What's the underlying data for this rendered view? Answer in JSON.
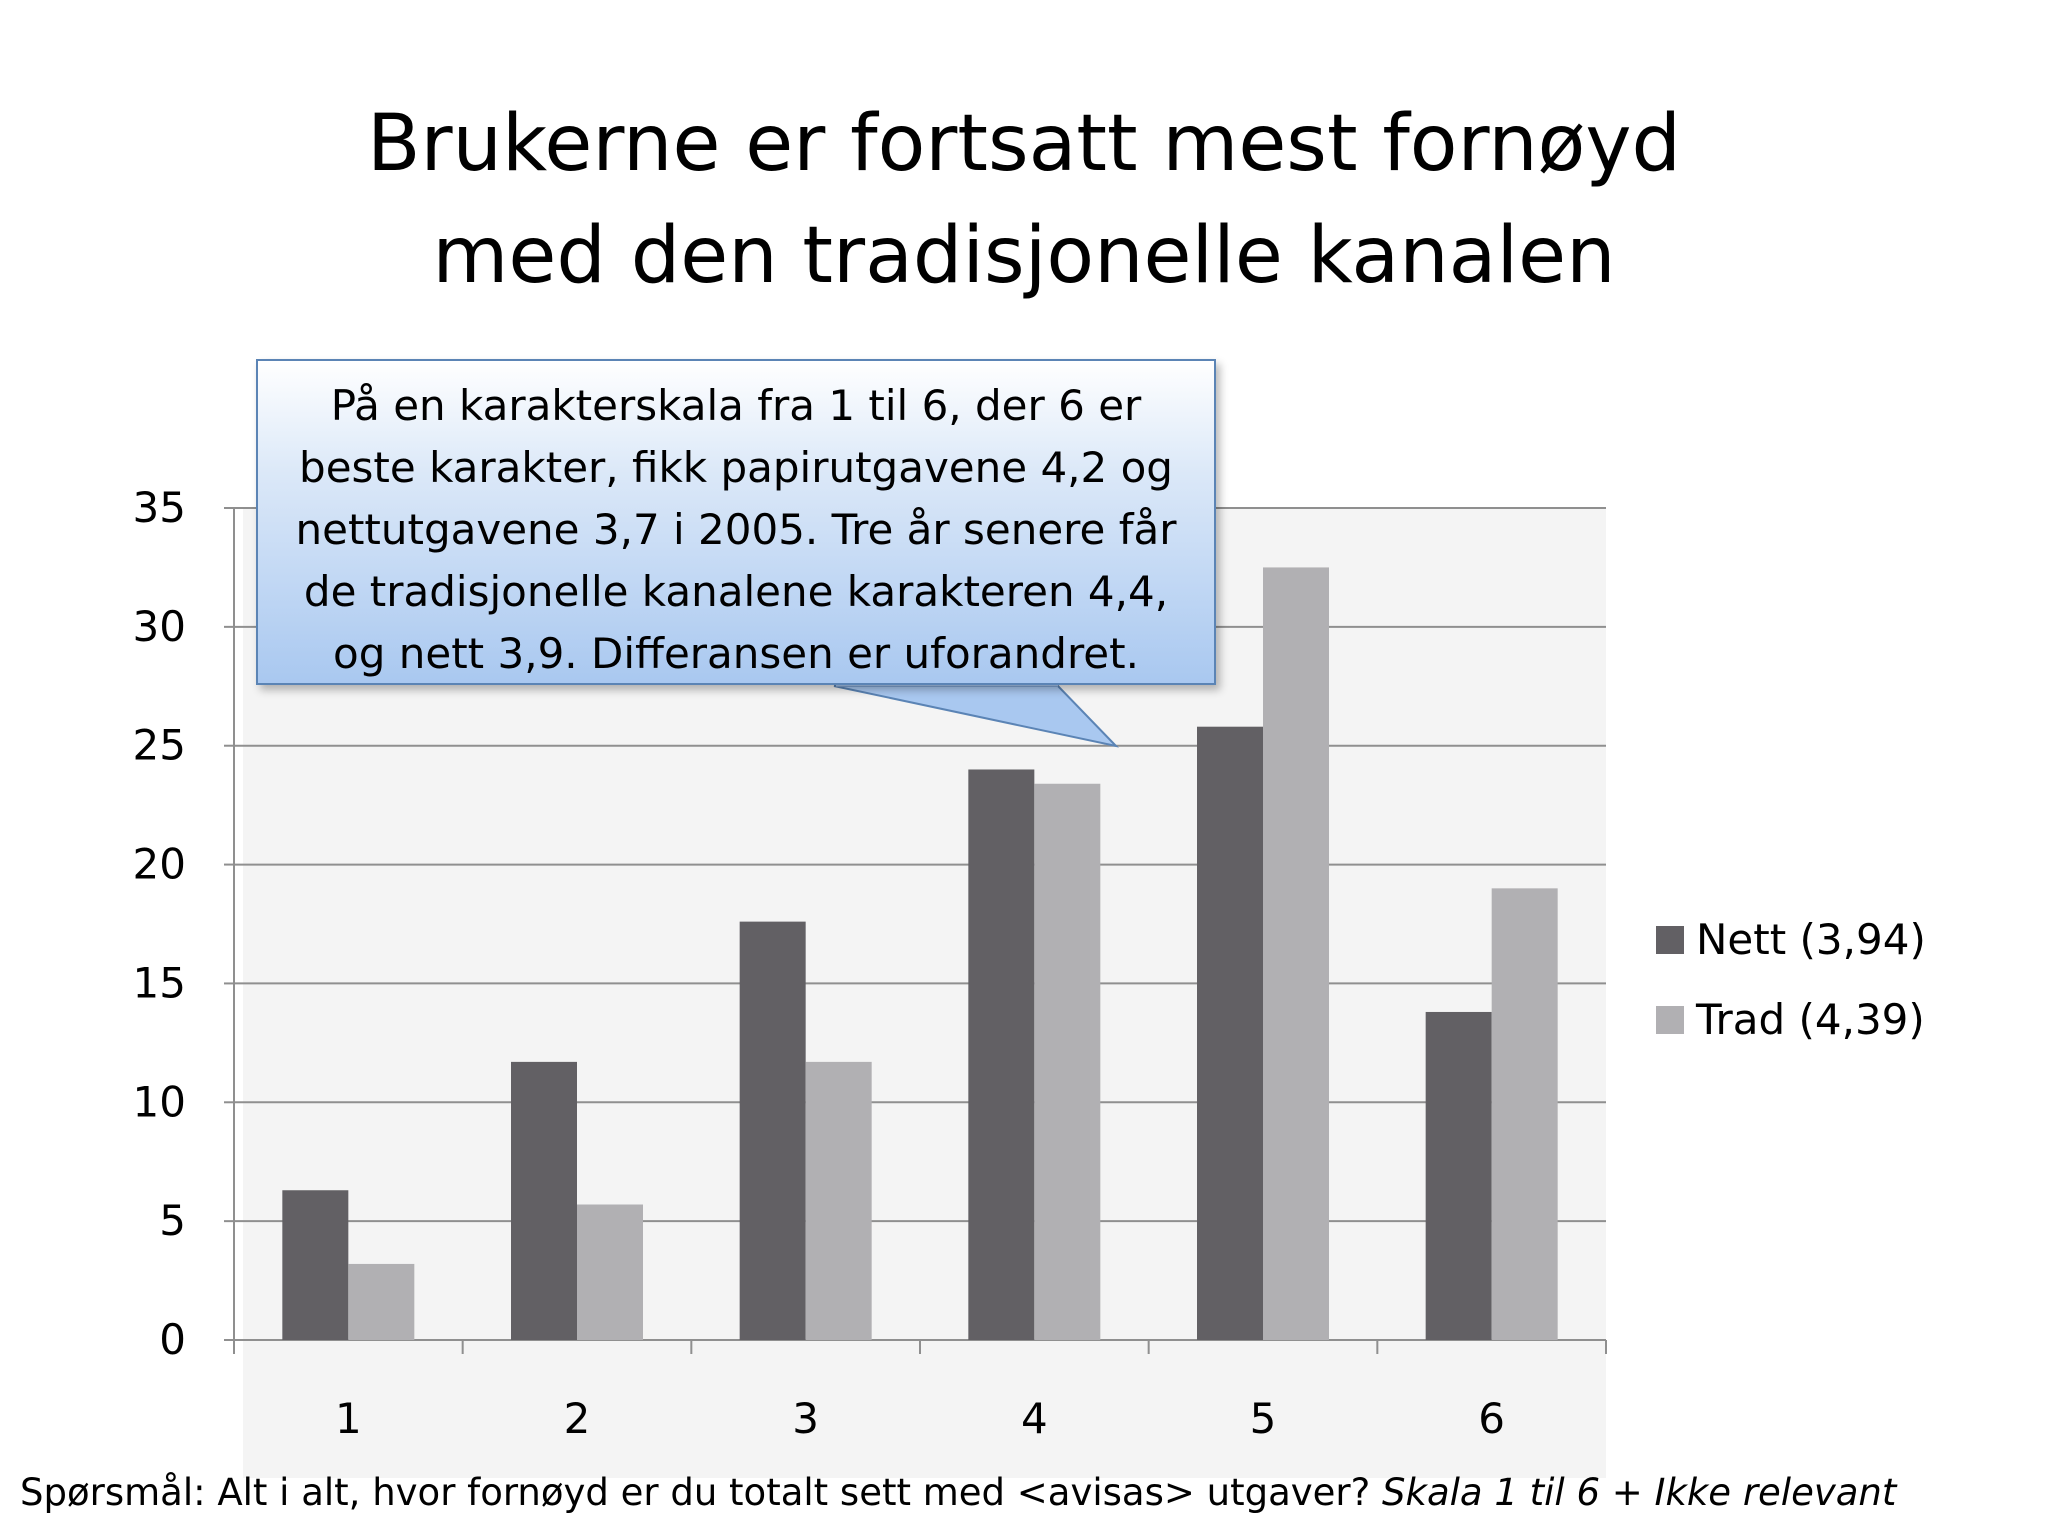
{
  "title": {
    "line1": "Brukerne er fortsatt mest fornøyd",
    "line2": "med den tradisjonelle kanalen"
  },
  "callout": {
    "text": "På en karakterskala fra 1 til 6, der 6 er beste karakter, fikk papirutgavene 4,2 og nettutgavene 3,7 i 2005. Tre år senere får de tradisjonelle kanalene karakteren 4,4, og nett 3,9. Differansen er uforandret."
  },
  "footnote": {
    "question": "Spørsmål: Alt i alt, hvor fornøyd er du totalt sett med <avisas> utgaver? ",
    "scale": "Skala 1 til 6 + Ikke relevant"
  },
  "colors": {
    "nett": "#626064",
    "trad": "#b1b0b3",
    "grid": "#8f8f8f",
    "axis": "#8f8f8f",
    "callout_border": "#5b84b5"
  },
  "chart_data": {
    "type": "bar",
    "categories": [
      "1",
      "2",
      "3",
      "4",
      "5",
      "6"
    ],
    "series": [
      {
        "name": "Nett (3,94)",
        "values": [
          6.3,
          11.7,
          17.6,
          24.0,
          25.8,
          13.8
        ]
      },
      {
        "name": "Trad (4,39)",
        "values": [
          3.2,
          5.7,
          11.7,
          23.4,
          32.5,
          19.0
        ]
      }
    ],
    "ylim": [
      0,
      35
    ],
    "yticks": [
      "0",
      "5",
      "10",
      "15",
      "20",
      "25",
      "30",
      "35"
    ],
    "grid": true,
    "legend_position": "right"
  }
}
